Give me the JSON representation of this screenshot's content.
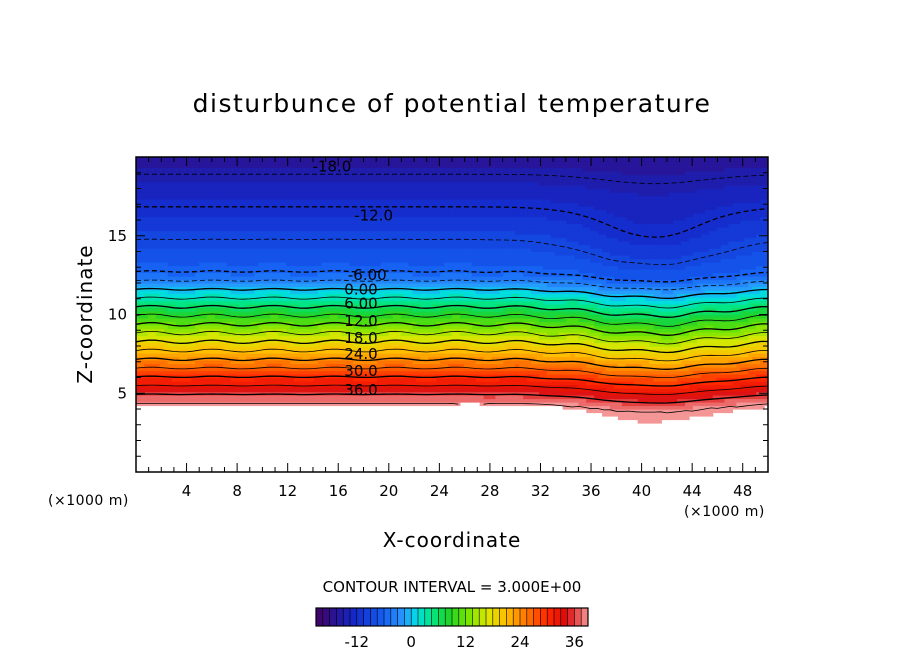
{
  "chart_data": {
    "type": "heatmap",
    "subtype": "filled-contour",
    "title": "disturbunce of potential temperature",
    "xlabel": "X-coordinate",
    "ylabel": "Z-coordinate",
    "x_unit": "(×1000 m)",
    "y_unit": "(×1000 m)",
    "xlim": [
      0,
      50
    ],
    "ylim": [
      0,
      20
    ],
    "xticks": [
      4,
      8,
      12,
      16,
      20,
      24,
      28,
      32,
      36,
      40,
      44,
      48
    ],
    "yticks": [
      5,
      10,
      15
    ],
    "contour_interval_text": "CONTOUR INTERVAL = 3.000E+00",
    "contour_interval": 3.0,
    "negative_contours_dashed": true,
    "masked_region": "terrain below z≈4–5 km shown blank (white)",
    "contour_labels": [
      {
        "text": "-18.0",
        "value": -18,
        "x": 15.5,
        "z": 19.4
      },
      {
        "text": "-12.0",
        "value": -12,
        "x": 18.8,
        "z": 16.3
      },
      {
        "text": "-6.00",
        "value": -6,
        "x": 18.3,
        "z": 12.5
      },
      {
        "text": "0.00",
        "value": 0,
        "x": 17.8,
        "z": 11.6
      },
      {
        "text": "6.00",
        "value": 6,
        "x": 17.8,
        "z": 10.7
      },
      {
        "text": "12.0",
        "value": 12,
        "x": 17.8,
        "z": 9.6
      },
      {
        "text": "18.0",
        "value": 18,
        "x": 17.8,
        "z": 8.5
      },
      {
        "text": "24.0",
        "value": 24,
        "x": 17.8,
        "z": 7.5
      },
      {
        "text": "30.0",
        "value": 30,
        "x": 17.8,
        "z": 6.4
      },
      {
        "text": "36.0",
        "value": 36,
        "x": 17.8,
        "z": 5.2
      }
    ],
    "colorbar": {
      "ticks": [
        "-12",
        "0",
        "12",
        "24",
        "36"
      ],
      "tick_values": [
        -12,
        0,
        12,
        24,
        36
      ],
      "range": [
        -21,
        39
      ]
    },
    "field_profile_note": "theta' decreases with height: ~39 near terrain, ~0 at z≈11.5, ~-21 at top; trough over x≈36–46 km deepens near-surface warm layer",
    "grid": false,
    "legend": "colorbar-bottom"
  }
}
